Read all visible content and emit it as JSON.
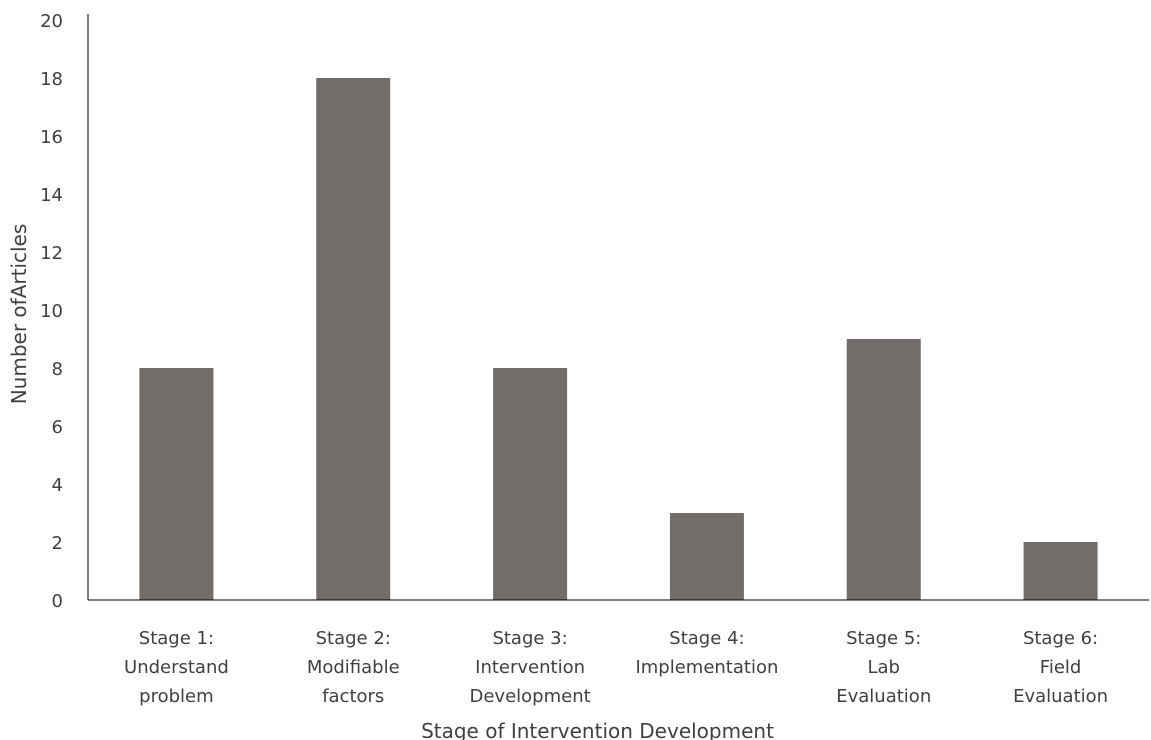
{
  "chart_data": {
    "type": "bar",
    "title": "",
    "xlabel": "Stage of Intervention Development",
    "ylabel": "Number ofArticles",
    "ylim": [
      0,
      20
    ],
    "yticks": [
      0,
      2,
      4,
      6,
      8,
      10,
      12,
      14,
      16,
      18,
      20
    ],
    "grid": false,
    "legend": "none",
    "categories": [
      [
        "Stage 1:",
        "Understand",
        "problem"
      ],
      [
        "Stage 2:",
        "Modifiable",
        "factors"
      ],
      [
        "Stage 3:",
        "Intervention",
        "Development"
      ],
      [
        "Stage 4:",
        "Implementation"
      ],
      [
        "Stage 5:",
        "Lab",
        "Evaluation"
      ],
      [
        "Stage 6:",
        "Field",
        "Evaluation"
      ]
    ],
    "values": [
      8,
      18,
      8,
      3,
      9,
      2
    ],
    "colors": {
      "bar": "#726d6b",
      "axis": "#000000",
      "text": "#404040"
    }
  }
}
